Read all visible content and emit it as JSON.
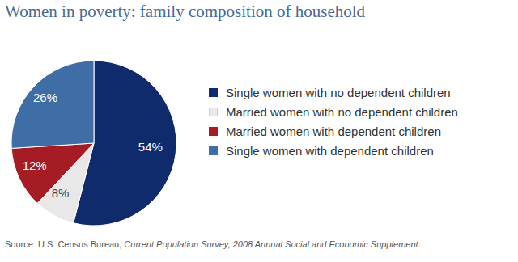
{
  "chart_data": {
    "type": "pie",
    "title": "Women in poverty: family composition of household",
    "categories": [
      "Single women with no dependent children",
      "Married women with no dependent children",
      "Married women with dependent children",
      "Single women with dependent children"
    ],
    "values": [
      54,
      8,
      12,
      26
    ],
    "value_labels": [
      "54%",
      "8%",
      "12%",
      "26%"
    ],
    "colors": [
      "#0f2b6b",
      "#e8e8e8",
      "#a61c24",
      "#3f6da6"
    ],
    "data_labels": true,
    "legend": "right",
    "source": [
      "Source: U.S. Census Bureau,",
      "Current Population Survey, 2008 Annual Social and Economic Supplement."
    ]
  }
}
